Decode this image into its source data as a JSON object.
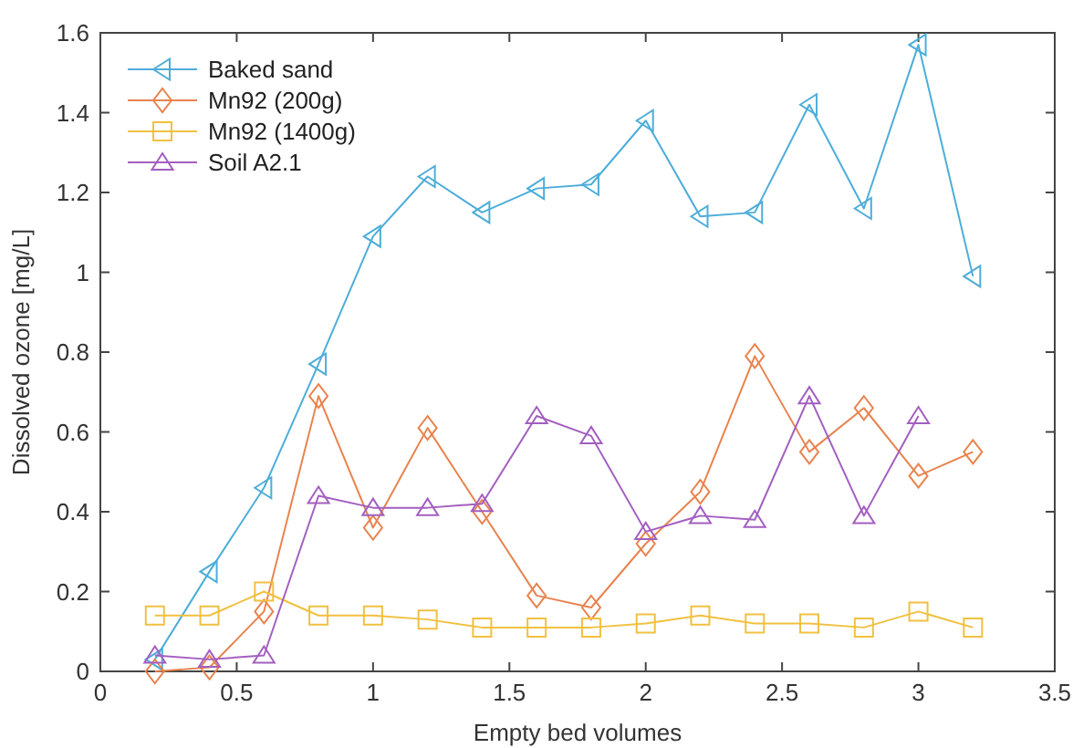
{
  "chart_data": {
    "type": "line",
    "xlabel": "Empty bed volumes",
    "ylabel": "Dissolved ozone [mg/L]",
    "x": [
      0.2,
      0.4,
      0.6,
      0.8,
      1.0,
      1.2,
      1.4,
      1.6,
      1.8,
      2.0,
      2.2,
      2.4,
      2.6,
      2.8,
      3.0,
      3.2
    ],
    "series": [
      {
        "name": "Baked sand",
        "color": "#4dadd9",
        "marker": "triangle-left",
        "values": [
          0.03,
          0.25,
          0.46,
          0.77,
          1.09,
          1.24,
          1.15,
          1.21,
          1.22,
          1.38,
          1.14,
          1.15,
          1.42,
          1.16,
          1.57,
          0.99
        ]
      },
      {
        "name": "Mn92 (200g)",
        "color": "#e8834e",
        "marker": "diamond",
        "values": [
          0.0,
          0.01,
          0.15,
          0.69,
          0.36,
          0.61,
          0.4,
          0.19,
          0.16,
          0.32,
          0.45,
          0.79,
          0.55,
          0.66,
          0.49,
          0.55
        ]
      },
      {
        "name": "Mn92 (1400g)",
        "color": "#f0c040",
        "marker": "square",
        "values": [
          0.14,
          0.14,
          0.2,
          0.14,
          0.14,
          0.13,
          0.11,
          0.11,
          0.11,
          0.12,
          0.14,
          0.12,
          0.12,
          0.11,
          0.15,
          0.11
        ]
      },
      {
        "name": "Soil A2.1",
        "color": "#a35fc0",
        "marker": "triangle",
        "x": [
          0.2,
          0.4,
          0.6,
          0.8,
          1.0,
          1.2,
          1.4,
          1.6,
          1.8,
          2.0,
          2.2,
          2.4,
          2.6,
          2.8,
          3.0
        ],
        "values": [
          0.04,
          0.03,
          0.04,
          0.44,
          0.41,
          0.41,
          0.42,
          0.64,
          0.59,
          0.35,
          0.39,
          0.38,
          0.69,
          0.39,
          0.64
        ]
      }
    ],
    "xlim": [
      0,
      3.5
    ],
    "xticks": [
      0,
      0.5,
      1,
      1.5,
      2,
      2.5,
      3,
      3.5
    ],
    "ylim": [
      0,
      1.6
    ],
    "yticks": [
      0,
      0.2,
      0.4,
      0.6,
      0.8,
      1,
      1.2,
      1.4,
      1.6
    ],
    "legend": "top left",
    "grid": false,
    "line_style": "solid"
  }
}
